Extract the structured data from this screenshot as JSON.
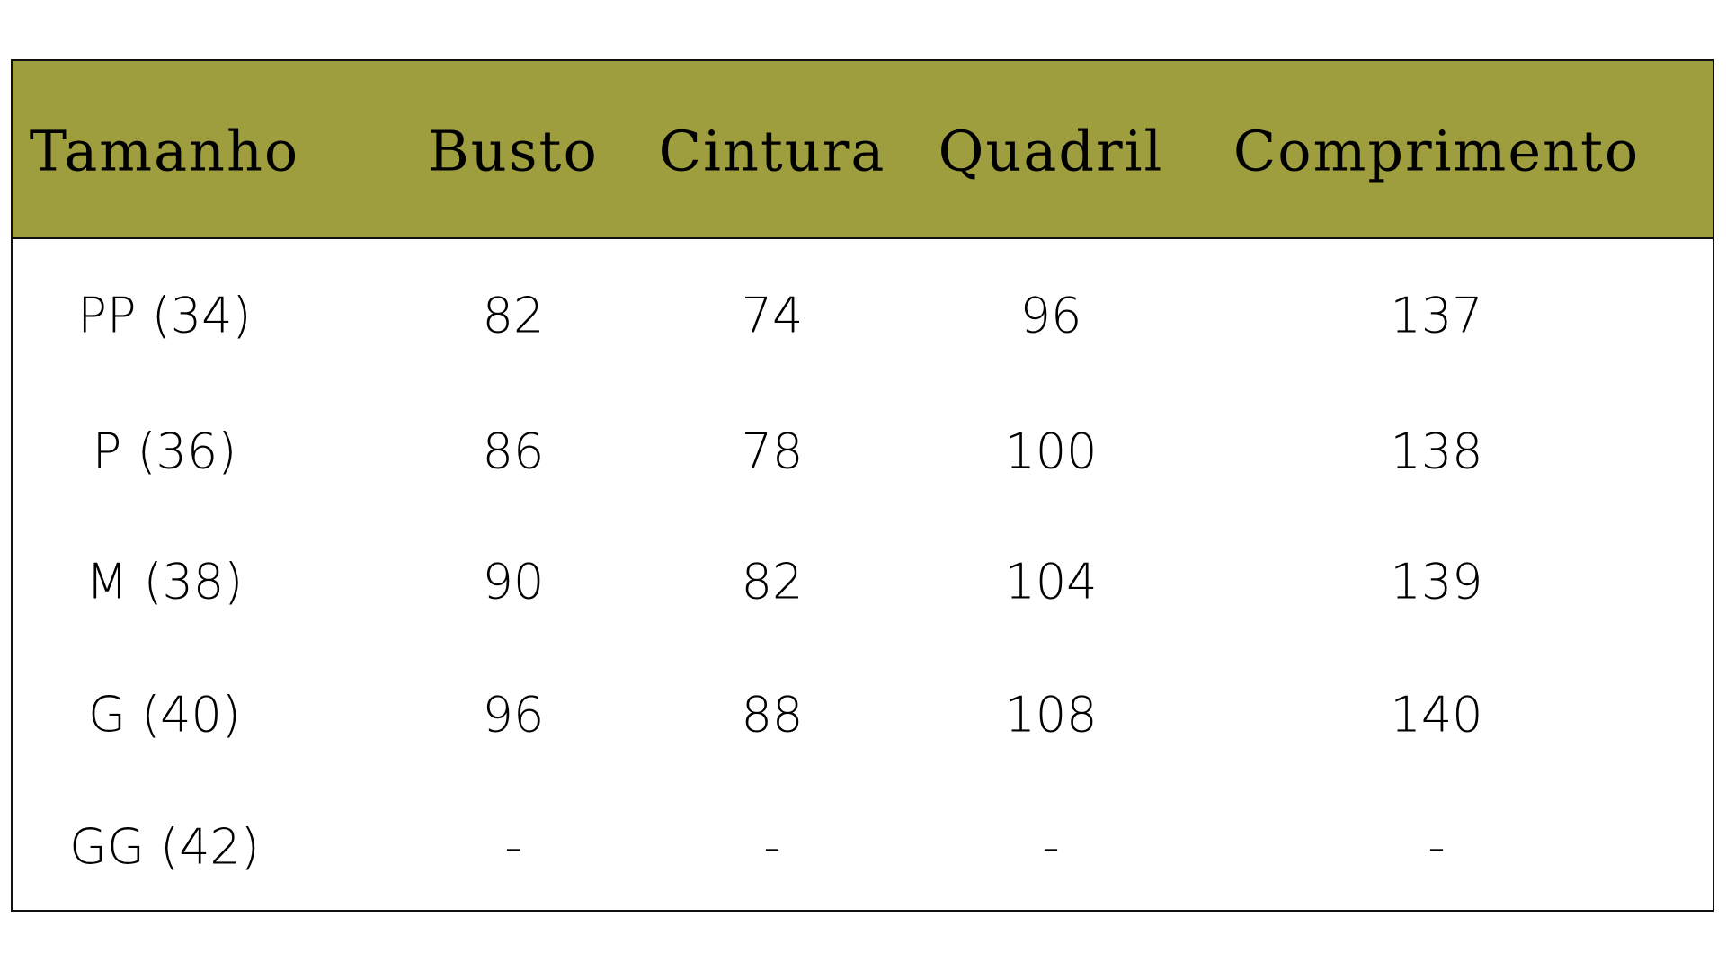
{
  "header_color": "#9f9e3f",
  "columns": [
    "Tamanho",
    "Busto",
    "Cintura",
    "Quadril",
    "Comprimento"
  ],
  "rows": [
    [
      "PP (34)",
      "82",
      "74",
      "96",
      "137"
    ],
    [
      "P (36)",
      "86",
      "78",
      "100",
      "138"
    ],
    [
      "M (38)",
      "90",
      "82",
      "104",
      "139"
    ],
    [
      "G (40)",
      "96",
      "88",
      "108",
      "140"
    ],
    [
      "GG (42)",
      "-",
      "-",
      "-",
      "-"
    ]
  ]
}
